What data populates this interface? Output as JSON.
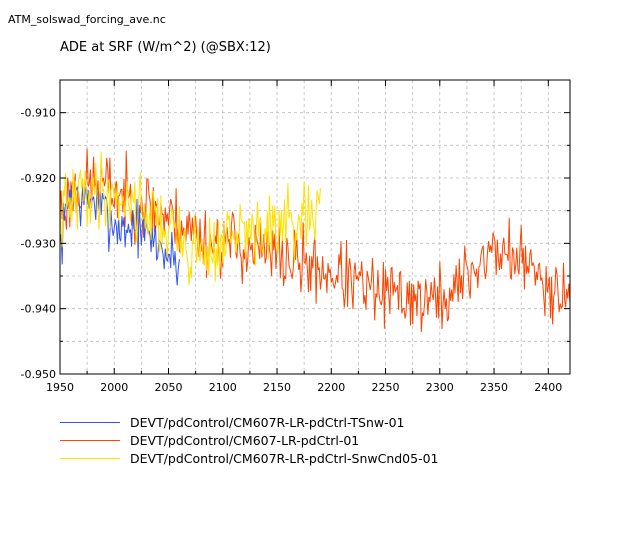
{
  "file_title": "ATM_solswad_forcing_ave.nc",
  "chart_data": {
    "type": "line",
    "title": "ADE at SRF (W/m^2) (@SBX:12)",
    "xlabel": "",
    "ylabel": "",
    "xlim": [
      1950,
      2420
    ],
    "ylim": [
      -0.95,
      -0.905
    ],
    "x_ticks": [
      1950,
      2000,
      2050,
      2100,
      2150,
      2200,
      2250,
      2300,
      2350,
      2400
    ],
    "x_tick_labels": [
      "1950",
      "2000",
      "2050",
      "2100",
      "2150",
      "2200",
      "2250",
      "2300",
      "2350",
      "2400"
    ],
    "y_ticks": [
      -0.91,
      -0.92,
      -0.93,
      -0.94,
      -0.95
    ],
    "y_tick_labels": [
      "-0.910",
      "-0.920",
      "-0.930",
      "-0.940",
      "-0.950"
    ],
    "grid": true,
    "legend_position": "bottom-left",
    "series": [
      {
        "name": "DEVT/pdControl/CM607R-LR-pdCtrl-TSnw-01",
        "color": "#3355ee",
        "x": [
          1950,
          1960,
          1970,
          1980,
          1990,
          2000,
          2010,
          2020,
          2030,
          2040,
          2050,
          2060
        ],
        "y": [
          -0.931,
          -0.921,
          -0.924,
          -0.923,
          -0.925,
          -0.927,
          -0.928,
          -0.927,
          -0.929,
          -0.93,
          -0.932,
          -0.933
        ],
        "noise": 0.0032,
        "seed": 7
      },
      {
        "name": "DEVT/pdControl/CM607-LR-pdCtrl-01",
        "color": "#ff4400",
        "x": [
          1950,
          1970,
          1990,
          2010,
          2030,
          2050,
          2070,
          2090,
          2110,
          2130,
          2150,
          2170,
          2190,
          2210,
          2230,
          2250,
          2270,
          2290,
          2310,
          2330,
          2350,
          2370,
          2390,
          2410,
          2420
        ],
        "y": [
          -0.925,
          -0.921,
          -0.921,
          -0.923,
          -0.924,
          -0.926,
          -0.928,
          -0.93,
          -0.93,
          -0.931,
          -0.932,
          -0.933,
          -0.934,
          -0.935,
          -0.937,
          -0.938,
          -0.938,
          -0.939,
          -0.938,
          -0.934,
          -0.931,
          -0.932,
          -0.935,
          -0.937,
          -0.938
        ],
        "noise": 0.004,
        "seed": 23
      },
      {
        "name": "DEVT/pdControl/CM607R-LR-pdCtrl-SnwCnd05-01",
        "color": "#ffe000",
        "x": [
          1950,
          1970,
          1990,
          2010,
          2030,
          2050,
          2070,
          2090,
          2110,
          2130,
          2150,
          2170,
          2190
        ],
        "y": [
          -0.926,
          -0.922,
          -0.922,
          -0.923,
          -0.925,
          -0.928,
          -0.931,
          -0.931,
          -0.929,
          -0.928,
          -0.928,
          -0.927,
          -0.926
        ],
        "noise": 0.0042,
        "seed": 41
      }
    ]
  }
}
